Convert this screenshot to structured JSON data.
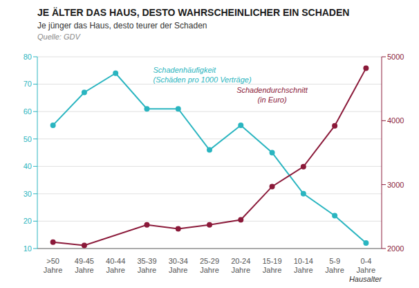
{
  "chart_data": {
    "type": "line",
    "title": "JE ÄLTER DAS HAUS, DESTO WAHRSCHEINLICHER EIN SCHADEN",
    "subtitle": "Je jünger das Haus, desto teurer der Schaden",
    "source": "Quelle: GDV",
    "x_label": "Hausalter",
    "annotations": [
      "Schadenhäufigkeit\n(Schäden pro 1000 Verträge)",
      "Schadendurchschnitt\n(in Euro)"
    ],
    "categories": [
      ">50\nJahre",
      "49-45\nJahre",
      "40-44\nJahre",
      "35-39\nJahre",
      "30-34\nJahre",
      "25-29\nJahre",
      "20-24\nJahre",
      "15-19\nJahre",
      "10-14\nJahre",
      "5-9\nJahre",
      "0-4\nJahre"
    ],
    "series": [
      {
        "color": "#2ab5c0",
        "axis": "y",
        "values": [
          55,
          67,
          74,
          61,
          61,
          46,
          55,
          45,
          30,
          22,
          12
        ]
      },
      {
        "color": "#8b1a3a",
        "axis": "y2",
        "values": [
          2100,
          2050,
          null,
          2370,
          2310,
          2370,
          2450,
          2970,
          3280,
          3920,
          4820
        ]
      }
    ],
    "ylim": [
      10,
      80
    ],
    "yticks": [
      10,
      20,
      30,
      40,
      50,
      60,
      70,
      80
    ],
    "y2lim": [
      2000,
      5000
    ],
    "y2ticks": [
      2000,
      3000,
      4000,
      5000
    ],
    "grid": true
  }
}
